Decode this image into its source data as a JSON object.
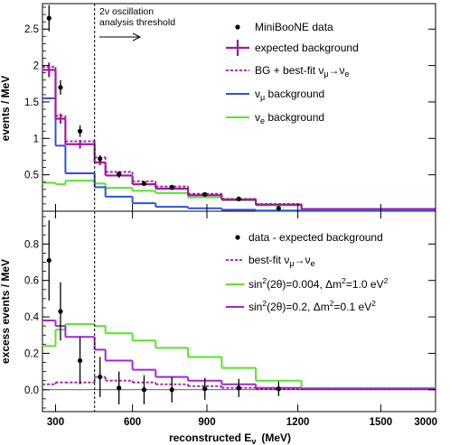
{
  "x_axis": {
    "label_main": "reconstructed E",
    "label_sub": "ν",
    "label_unit": "(MeV)",
    "tick_labels": [
      "300",
      "600",
      "900",
      "1200",
      "1500",
      "3000"
    ]
  },
  "threshold": {
    "line1": "2ν oscillation",
    "line2": "analysis threshold"
  },
  "chart_data": [
    {
      "type": "histogram",
      "ylabel": "events / MeV",
      "bin_edges": [
        200,
        300,
        375,
        475,
        550,
        675,
        800,
        950,
        1100,
        1300,
        1500,
        3000
      ],
      "ylim": [
        0,
        2.85
      ],
      "yticks": [
        "0.5",
        "1",
        "1.5",
        "2",
        "2.5"
      ],
      "grid": false,
      "legend": {
        "position": "top-right",
        "entries": {
          "data": "MiniBooNE data",
          "expected": "expected background",
          "bestfit_pre": "BG + best-fit ν",
          "bestfit_sub1": "μ",
          "bestfit_arrow": "→ν",
          "bestfit_sub2": "e",
          "numu_pre": "ν",
          "numu_sub": "μ",
          "numu_post": " background",
          "nue_pre": "ν",
          "nue_sub": "e",
          "nue_post": " background"
        }
      },
      "colors": {
        "data": "#000000",
        "expected": "#a3189f",
        "bestfit": "#a3189f",
        "numu": "#2d50e6",
        "nue": "#55e52a"
      },
      "data_points": [
        {
          "x": 250,
          "y": 2.65,
          "err": 0.18
        },
        {
          "x": 337.5,
          "y": 1.7,
          "err": 0.1
        },
        {
          "x": 425,
          "y": 1.1,
          "err": 0.08
        },
        {
          "x": 512.5,
          "y": 0.72,
          "err": 0.05
        },
        {
          "x": 612.5,
          "y": 0.51,
          "err": 0.04
        },
        {
          "x": 737.5,
          "y": 0.38,
          "err": 0.03
        },
        {
          "x": 875,
          "y": 0.33,
          "err": 0.03
        },
        {
          "x": 1025,
          "y": 0.23,
          "err": 0.02
        },
        {
          "x": 1200,
          "y": 0.17,
          "err": 0.015
        },
        {
          "x": 1400,
          "y": 0.04,
          "err": 0.01
        }
      ],
      "expected_background": {
        "values": [
          1.94,
          1.27,
          0.92,
          0.67,
          0.49,
          0.37,
          0.31,
          0.22,
          0.16,
          0.09,
          0.03
        ],
        "errors": [
          0.1,
          0.07,
          0.06,
          0.04,
          0.03,
          0.025,
          0.02,
          0.015,
          0.01,
          0.008,
          0.004
        ]
      },
      "bg_plus_bestfit": [
        1.98,
        1.31,
        0.96,
        0.74,
        0.54,
        0.41,
        0.34,
        0.24,
        0.17,
        0.1,
        0.03
      ],
      "numu_background": [
        1.55,
        0.9,
        0.52,
        0.33,
        0.2,
        0.11,
        0.06,
        0.04,
        0.02,
        0.01,
        0.005
      ],
      "nue_background": [
        0.39,
        0.37,
        0.42,
        0.38,
        0.32,
        0.28,
        0.25,
        0.19,
        0.15,
        0.08,
        0.03
      ]
    },
    {
      "type": "histogram",
      "ylabel": "excess events / MeV",
      "bin_edges": [
        200,
        300,
        375,
        475,
        550,
        675,
        800,
        950,
        1100,
        1300,
        1500,
        3000
      ],
      "ylim": [
        -0.12,
        0.98
      ],
      "yticks": [
        "0.0",
        "0.2",
        "0.4",
        "0.6",
        "0.8"
      ],
      "grid": false,
      "legend": {
        "position": "top-right",
        "entries": {
          "data": "data - expected background",
          "bestfit_pre": "best-fit ν",
          "bestfit_sub1": "μ",
          "bestfit_arrow": "→ν",
          "bestfit_sub2": "e",
          "green_pre": "sin",
          "green_sup": "2",
          "green_mid": "(2θ)=0.004, Δm",
          "green_sup2": "2",
          "green_post": "=1.0 eV",
          "green_sup3": "2",
          "purple_pre": "sin",
          "purple_sup": "2",
          "purple_mid": "(2θ)=0.2, Δm",
          "purple_sup2": "2",
          "purple_post": "=0.1 eV",
          "purple_sup3": "2"
        }
      },
      "colors": {
        "data": "#000000",
        "bestfit": "#a3189f",
        "green": "#55e52a",
        "purple": "#a225dd"
      },
      "data_points": [
        {
          "x": 250,
          "y": 0.71,
          "err": 0.22
        },
        {
          "x": 337.5,
          "y": 0.43,
          "err": 0.16
        },
        {
          "x": 425,
          "y": 0.16,
          "err": 0.13
        },
        {
          "x": 512.5,
          "y": 0.07,
          "err": 0.11
        },
        {
          "x": 612.5,
          "y": 0.01,
          "err": 0.09
        },
        {
          "x": 737.5,
          "y": 0.0,
          "err": 0.08
        },
        {
          "x": 875,
          "y": 0.0,
          "err": 0.07
        },
        {
          "x": 1025,
          "y": 0.005,
          "err": 0.06
        },
        {
          "x": 1200,
          "y": 0.01,
          "err": 0.05
        },
        {
          "x": 1400,
          "y": 0.005,
          "err": 0.04
        }
      ],
      "bestfit_numu_nue": [
        0.03,
        0.04,
        0.04,
        0.07,
        0.05,
        0.04,
        0.03,
        0.02,
        0.01,
        0.005,
        0.002
      ],
      "osc_green": [
        0.24,
        0.33,
        0.36,
        0.35,
        0.31,
        0.27,
        0.23,
        0.18,
        0.12,
        0.05,
        0.01
      ],
      "osc_purple": [
        0.38,
        0.35,
        0.29,
        0.22,
        0.16,
        0.11,
        0.07,
        0.05,
        0.03,
        0.01,
        0.005
      ]
    }
  ]
}
